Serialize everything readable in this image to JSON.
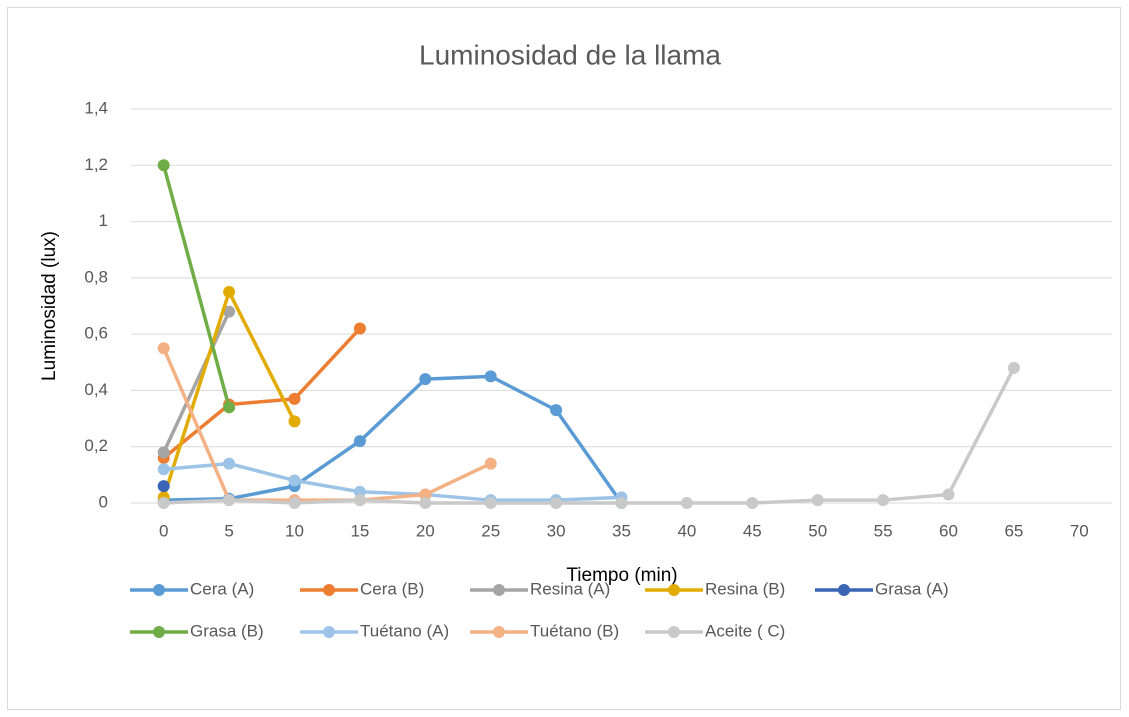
{
  "chart_data": {
    "type": "line",
    "title": "Luminosidad de la llama",
    "x_label": "Tiempo (min)",
    "y_label": "Luminosidad (lux)",
    "x": [
      0,
      5,
      10,
      15,
      20,
      25,
      30,
      35,
      40,
      45,
      50,
      55,
      60,
      65,
      70
    ],
    "xlim": [
      -2.5,
      72.5
    ],
    "ylim": [
      0,
      1.4
    ],
    "yticks": [
      0,
      {
        "value": 0.2,
        "label": "0,2"
      },
      {
        "value": 0.4,
        "label": "0,4"
      },
      {
        "value": 0.6,
        "label": "0,6"
      },
      {
        "value": 0.8,
        "label": "0,8"
      },
      1,
      {
        "value": 1.2,
        "label": "1,2"
      },
      {
        "value": 1.4,
        "label": "1,4"
      }
    ],
    "grid": true,
    "legend": "bottom",
    "series": [
      {
        "name": "Cera (A)",
        "color": "#5b9bd5",
        "values": [
          0.01,
          0.015,
          0.06,
          0.22,
          0.44,
          0.45,
          0.33,
          0,
          null,
          null,
          null,
          null,
          null,
          null,
          null
        ]
      },
      {
        "name": "Cera (B)",
        "color": "#ed7d31",
        "values": [
          0.16,
          0.35,
          0.37,
          0.62,
          null,
          null,
          null,
          null,
          null,
          null,
          null,
          null,
          null,
          null,
          null
        ]
      },
      {
        "name": "Resina (A)",
        "color": "#a5a5a5",
        "values": [
          0.18,
          0.68,
          null,
          null,
          null,
          null,
          null,
          null,
          null,
          null,
          null,
          null,
          null,
          null,
          null
        ]
      },
      {
        "name": "Resina (B)",
        "color": "#e2ab00",
        "values": [
          0.02,
          0.75,
          0.29,
          null,
          null,
          null,
          null,
          null,
          null,
          null,
          null,
          null,
          null,
          null,
          null
        ]
      },
      {
        "name": "Grasa (A)",
        "color": "#3a64b4",
        "values": [
          0.06,
          null,
          null,
          null,
          null,
          null,
          null,
          null,
          null,
          null,
          null,
          null,
          null,
          null,
          null
        ]
      },
      {
        "name": "Grasa (B)",
        "color": "#70ad47",
        "values": [
          1.2,
          0.34,
          null,
          null,
          null,
          null,
          null,
          null,
          null,
          null,
          null,
          null,
          null,
          null,
          null
        ]
      },
      {
        "name": "Tuétano (A)",
        "color": "#9dc3e6",
        "values": [
          0.12,
          0.14,
          0.08,
          0.04,
          0.03,
          0.01,
          0.01,
          0.02,
          null,
          null,
          null,
          null,
          null,
          null,
          null
        ]
      },
      {
        "name": "Tuétano (B)",
        "color": "#f4b183",
        "values": [
          0.55,
          0.01,
          0.01,
          0.01,
          0.03,
          0.14,
          null,
          null,
          null,
          null,
          null,
          null,
          null,
          null,
          null
        ]
      },
      {
        "name": "Aceite ( C)",
        "color": "#c9c9c9",
        "values": [
          0,
          0.01,
          0,
          0.01,
          0,
          0,
          0,
          0,
          0,
          0,
          0.01,
          0.01,
          0.03,
          0.48,
          null
        ]
      }
    ]
  }
}
